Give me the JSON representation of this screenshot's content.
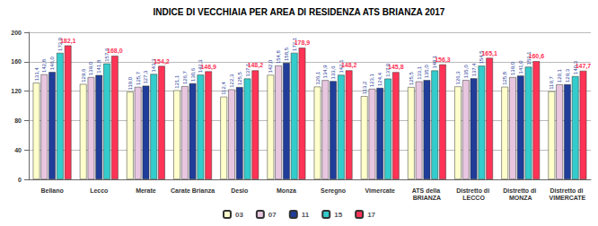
{
  "chart_data": {
    "type": "bar",
    "title": "INDICE DI VECCHIAIA PER AREA DI RESIDENZA ATS BRIANZA 2017",
    "categories": [
      "Bellano",
      "Lecco",
      "Merate",
      "Carate Brianza",
      "Desio",
      "Monza",
      "Seregno",
      "Vimercate",
      "ATS della BRIANZA",
      "Distretto di LECCO",
      "Distretto di MONZA",
      "Distretto di VIMERCATE"
    ],
    "series": [
      {
        "name": "03",
        "color": "#ffffcc",
        "values": [
          131.4,
          129.6,
          119.0,
          121.1,
          112.4,
          142.0,
          126.1,
          113.2,
          125.5,
          126.3,
          125.8,
          119.7
        ],
        "value_labels": [
          "131,4",
          "129,6",
          "119,0",
          "121,1",
          "112,4",
          "142,0",
          "126,1",
          "113,2",
          "125,5",
          "126,3",
          "125,8",
          "119,7"
        ]
      },
      {
        "name": "07",
        "color": "#e8c6e0",
        "values": [
          142.8,
          139.0,
          125.7,
          126.7,
          122.3,
          154.8,
          134.9,
          123.1,
          133.1,
          135.0,
          139.0,
          129.1
        ],
        "value_labels": [
          "142,8",
          "139,0",
          "125,7",
          "126,7",
          "122,3",
          "154,8",
          "134,9",
          "123,1",
          "133,1",
          "135,0",
          "139,0",
          "129,1"
        ]
      },
      {
        "name": "11",
        "color": "#1f3d99",
        "values": [
          146.0,
          141.8,
          127.3,
          130.6,
          125.5,
          158.5,
          133.6,
          124.4,
          135.0,
          137.4,
          141.0,
          129.3
        ],
        "value_labels": [
          "146,0",
          "141,8",
          "127,3",
          "130,6",
          "125,5",
          "158,5",
          "133,6",
          "124,4",
          "135,0",
          "137,4",
          "141,0",
          "129,3"
        ]
      },
      {
        "name": "15",
        "color": "#33cccc",
        "values": [
          172.0,
          157.6,
          143.3,
          142.3,
          137.1,
          172.1,
          142.1,
          137.0,
          148.1,
          154.5,
          153.1,
          140.3
        ],
        "value_labels": [
          "172,0",
          "157,6",
          "143,3",
          "142,3",
          "137,1",
          "172,1",
          "142,1",
          "137,0",
          "148,1",
          "154,5",
          "153,1",
          "140,3"
        ]
      },
      {
        "name": "17",
        "color": "#ff3355",
        "values": [
          182.1,
          168.0,
          154.2,
          146.9,
          148.2,
          178.9,
          148.2,
          145.8,
          156.3,
          165.1,
          160.6,
          147.7
        ],
        "value_labels": [
          "182,1",
          "168,0",
          "154,2",
          "146,9",
          "148,2",
          "178,9",
          "148,2",
          "145,8",
          "156,3",
          "165,1",
          "160,6",
          "147,7"
        ]
      }
    ],
    "ylim": [
      0,
      200
    ],
    "yticks": [
      0,
      40,
      80,
      120,
      160,
      200
    ],
    "grid": true,
    "legend": "bottom",
    "data_labels": true
  }
}
